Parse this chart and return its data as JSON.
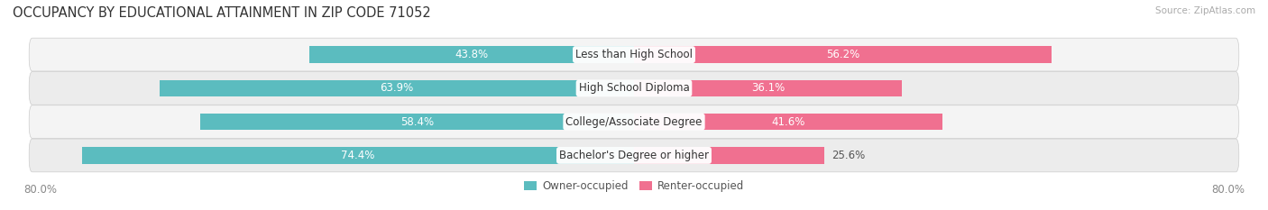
{
  "title": "OCCUPANCY BY EDUCATIONAL ATTAINMENT IN ZIP CODE 71052",
  "source": "Source: ZipAtlas.com",
  "categories": [
    "Less than High School",
    "High School Diploma",
    "College/Associate Degree",
    "Bachelor's Degree or higher"
  ],
  "owner_pct": [
    43.8,
    63.9,
    58.4,
    74.4
  ],
  "renter_pct": [
    56.2,
    36.1,
    41.6,
    25.6
  ],
  "owner_color": "#5bbcbf",
  "renter_color": "#f07090",
  "row_bg_color": "#efefef",
  "axis_left_label": "80.0%",
  "axis_right_label": "80.0%",
  "title_fontsize": 10.5,
  "label_fontsize": 8.5,
  "tick_fontsize": 8.5,
  "legend_fontsize": 8.5,
  "owner_label_inside_color": "white",
  "owner_label_outside_color": "#555555",
  "renter_label_inside_color": "white",
  "renter_label_outside_color": "#555555",
  "owner_inside_threshold": 15,
  "renter_inside_threshold": 30
}
